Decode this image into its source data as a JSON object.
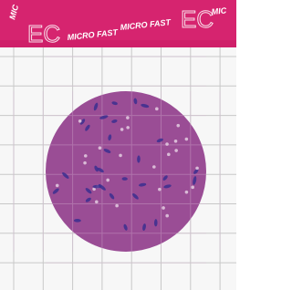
{
  "banner": {
    "texts": [
      "MIC",
      "EC",
      "MICRO FAST",
      "MICRO FAST",
      "EC",
      "MIC"
    ]
  }
}
